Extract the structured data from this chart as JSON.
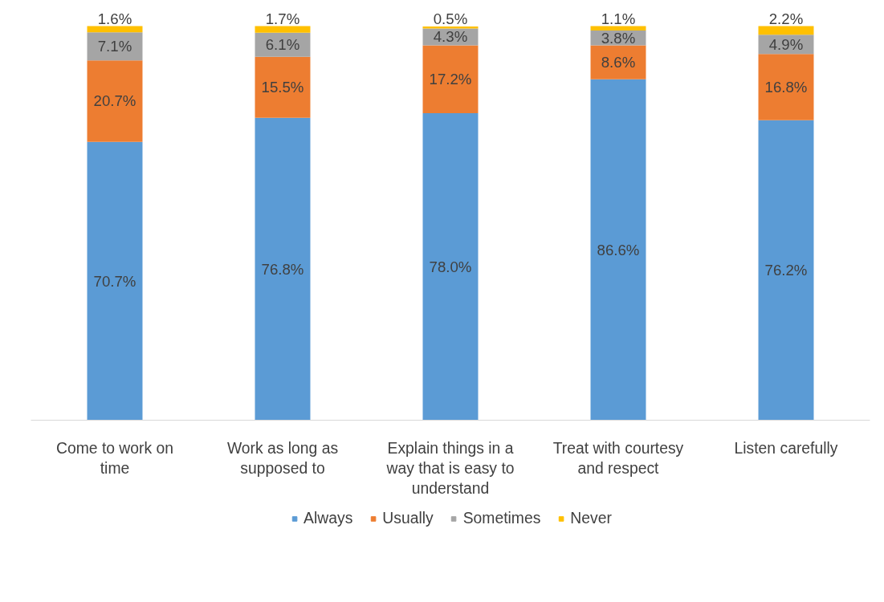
{
  "chart_data": {
    "type": "bar",
    "stacked": true,
    "legend": "bottom",
    "grid": false,
    "categories": [
      "Come to work on time",
      "Work as long as supposed to",
      "Explain things in a way that is easy to understand",
      "Treat with courtesy and respect",
      "Listen carefully"
    ],
    "series": [
      {
        "name": "Always",
        "color": "#5b9bd5",
        "values": [
          70.7,
          76.8,
          78.0,
          86.6,
          76.2
        ],
        "value_labels": [
          "70.7%",
          "76.8%",
          "78.0%",
          "86.6%",
          "76.2%"
        ]
      },
      {
        "name": "Usually",
        "color": "#ed7d31",
        "values": [
          20.7,
          15.5,
          17.2,
          8.6,
          16.8
        ],
        "value_labels": [
          "20.7%",
          "15.5%",
          "17.2%",
          "8.6%",
          "16.8%"
        ]
      },
      {
        "name": "Sometimes",
        "color": "#a5a5a5",
        "values": [
          7.1,
          6.1,
          4.3,
          3.8,
          4.9
        ],
        "value_labels": [
          "7.1%",
          "6.1%",
          "4.3%",
          "3.8%",
          "4.9%"
        ]
      },
      {
        "name": "Never",
        "color": "#ffc000",
        "values": [
          1.6,
          1.7,
          0.5,
          1.1,
          2.2
        ],
        "value_labels": [
          "1.6%",
          "1.7%",
          "0.5%",
          "1.1%",
          "2.2%"
        ]
      }
    ]
  }
}
